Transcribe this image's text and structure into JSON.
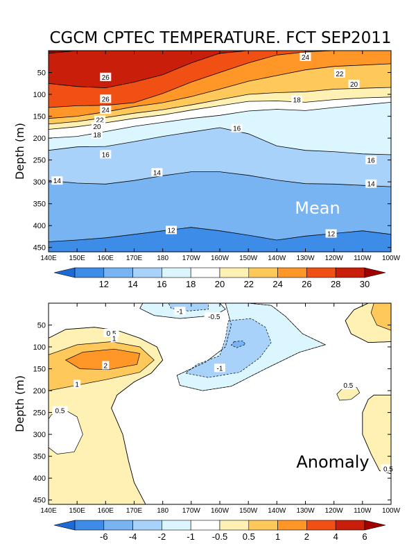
{
  "chart_data": [
    {
      "type": "heatmap",
      "panel": "mean",
      "title": "CGCM CPTEC TEMPERATURE. FCT SEP2011",
      "annotation": "Mean",
      "annotation_color": "#ffffff",
      "ylabel": "Depth (m)",
      "xlabel": "",
      "x_ticks": [
        "140E",
        "150E",
        "160E",
        "170E",
        "180",
        "170W",
        "160W",
        "150W",
        "140W",
        "130W",
        "120W",
        "110W",
        "100W"
      ],
      "y_ticks": [
        50,
        100,
        150,
        200,
        250,
        300,
        350,
        400,
        450
      ],
      "ylim": [
        460,
        0
      ],
      "colorbar": {
        "levels": [
          12,
          14,
          16,
          18,
          20,
          22,
          24,
          26,
          28,
          30
        ],
        "colors": [
          "#1e6ad2",
          "#3c8ce8",
          "#78b4f2",
          "#a8d2fa",
          "#dcf6ff",
          "#ffffff",
          "#fff0b4",
          "#ffc85a",
          "#ff9628",
          "#f05014",
          "#c81e0a",
          "#a00000"
        ]
      },
      "contours": [
        {
          "level": 12,
          "depth": [
            437,
            433,
            428,
            420,
            412,
            404,
            412,
            422,
            433,
            424,
            418,
            412,
            420
          ]
        },
        {
          "level": 14,
          "depth": [
            297,
            303,
            305,
            297,
            286,
            277,
            277,
            285,
            296,
            304,
            305,
            308,
            311
          ]
        },
        {
          "level": 16,
          "depth": [
            228,
            220,
            219,
            208,
            196,
            186,
            176,
            190,
            218,
            228,
            231,
            236,
            238
          ]
        },
        {
          "level": 18,
          "depth": [
            200,
            196,
            185,
            173,
            164,
            155,
            148,
            138,
            134,
            137,
            130,
            124,
            118
          ]
        },
        {
          "level": 20,
          "depth": [
            180,
            174,
            165,
            155,
            147,
            136,
            126,
            116,
            115,
            118,
            112,
            108,
            106
          ]
        },
        {
          "level": 22,
          "depth": [
            168,
            162,
            153,
            143,
            135,
            124,
            112,
            100,
            96,
            94,
            88,
            86,
            84
          ]
        },
        {
          "level": 24,
          "depth": [
            155,
            150,
            140,
            128,
            119,
            105,
            88,
            70,
            57,
            44,
            36,
            33,
            30
          ]
        },
        {
          "level": 26,
          "depth": [
            130,
            126,
            125,
            119,
            98,
            72,
            50,
            28,
            10,
            3,
            0,
            0,
            0
          ]
        },
        {
          "level": 28,
          "depth": [
            75,
            82,
            85,
            72,
            55,
            28,
            6,
            0,
            0,
            0,
            0,
            0,
            0
          ]
        },
        {
          "level": 30,
          "depth": [
            6,
            0,
            0,
            0,
            0,
            0,
            0,
            0,
            0,
            0,
            0,
            0,
            0
          ]
        }
      ],
      "contour_labels": [
        {
          "text": "26",
          "lon": 160,
          "depth": 60
        },
        {
          "text": "26",
          "lon": 160,
          "depth": 110
        },
        {
          "text": "24",
          "lon": 160,
          "depth": 135
        },
        {
          "text": "22",
          "lon": 158,
          "depth": 158
        },
        {
          "text": "20",
          "lon": 157,
          "depth": 173
        },
        {
          "text": "18",
          "lon": 157,
          "depth": 192
        },
        {
          "text": "16",
          "lon": 160,
          "depth": 237
        },
        {
          "text": "14",
          "lon": 143,
          "depth": 297
        },
        {
          "text": "14",
          "lon": 178,
          "depth": 278
        },
        {
          "text": "16",
          "lon": 206,
          "depth": 177
        },
        {
          "text": "18",
          "lon": 227,
          "depth": 112
        },
        {
          "text": "24",
          "lon": 230,
          "depth": 14
        },
        {
          "text": "22",
          "lon": 242,
          "depth": 52
        },
        {
          "text": "20",
          "lon": 247,
          "depth": 76
        },
        {
          "text": "16",
          "lon": 253,
          "depth": 250
        },
        {
          "text": "14",
          "lon": 253,
          "depth": 304
        },
        {
          "text": "12",
          "lon": 183,
          "depth": 410
        },
        {
          "text": "12",
          "lon": 239,
          "depth": 418
        }
      ]
    },
    {
      "type": "heatmap",
      "panel": "anomaly",
      "annotation": "Anomaly",
      "annotation_color": "#000000",
      "ylabel": "Depth (m)",
      "xlabel": "",
      "x_ticks": [
        "140E",
        "150E",
        "160E",
        "170E",
        "180",
        "170W",
        "160W",
        "150W",
        "140W",
        "130W",
        "120W",
        "110W",
        "100W"
      ],
      "y_ticks": [
        50,
        100,
        150,
        200,
        250,
        300,
        350,
        400,
        450
      ],
      "ylim": [
        460,
        0
      ],
      "colorbar": {
        "levels": [
          "-6",
          "-4",
          "-2",
          "-1",
          "-0.5",
          "0.5",
          "1",
          "2",
          "4",
          "6"
        ],
        "colors": [
          "#1e6ad2",
          "#3c8ce8",
          "#78b4f2",
          "#a8d2fa",
          "#dcf6ff",
          "#ffffff",
          "#fff0b4",
          "#ffc85a",
          "#ff9628",
          "#f05014",
          "#c81e0a",
          "#a00000"
        ]
      },
      "regions": [
        {
          "value": 0.5,
          "lonlat": [
            [
              140,
              80
            ],
            [
              146,
              60
            ],
            [
              156,
              55
            ],
            [
              164,
              62
            ],
            [
              172,
              80
            ],
            [
              178,
              100
            ],
            [
              180,
              130
            ],
            [
              176,
              160
            ],
            [
              170,
              180
            ],
            [
              164,
              210
            ],
            [
              162,
              240
            ],
            [
              166,
              300
            ],
            [
              168,
              360
            ],
            [
              170,
              410
            ],
            [
              174,
              460
            ],
            [
              140,
              460
            ]
          ]
        },
        {
          "value": 0,
          "lonlat": [
            [
              141,
              255
            ],
            [
              146,
              245
            ],
            [
              150,
              260
            ],
            [
              152,
              300
            ],
            [
              149,
              340
            ],
            [
              143,
              345
            ],
            [
              140,
              330
            ],
            [
              140,
              265
            ]
          ]
        },
        {
          "value": 1,
          "lonlat": [
            [
              140,
              118
            ],
            [
              150,
              95
            ],
            [
              162,
              88
            ],
            [
              172,
              100
            ],
            [
              177,
              130
            ],
            [
              172,
              158
            ],
            [
              160,
              175
            ],
            [
              148,
              190
            ],
            [
              140,
              200
            ]
          ]
        },
        {
          "value": 2,
          "lonlat": [
            [
              146,
              130
            ],
            [
              152,
              112
            ],
            [
              163,
              105
            ],
            [
              172,
              115
            ],
            [
              171,
              140
            ],
            [
              161,
              152
            ],
            [
              151,
              150
            ]
          ]
        },
        {
          "value": -0.5,
          "lonlat": [
            [
              173,
              0
            ],
            [
              200,
              0
            ],
            [
              202,
              14
            ],
            [
              198,
              28
            ],
            [
              186,
              35
            ],
            [
              177,
              28
            ],
            [
              172,
              12
            ]
          ]
        },
        {
          "value": -1,
          "lonlat": [
            [
              182,
              0
            ],
            [
              196,
              0
            ],
            [
              196,
              14
            ],
            [
              189,
              18
            ],
            [
              183,
              12
            ]
          ]
        },
        {
          "value": -0.5,
          "lonlat": [
            [
              202,
              0
            ],
            [
              210,
              0
            ],
            [
              218,
              5
            ],
            [
              223,
              30
            ],
            [
              229,
              70
            ],
            [
              237,
              95
            ],
            [
              228,
              112
            ],
            [
              216,
              150
            ],
            [
              204,
              190
            ],
            [
              194,
              200
            ],
            [
              186,
              188
            ],
            [
              185,
              165
            ],
            [
              195,
              135
            ],
            [
              202,
              100
            ],
            [
              204,
              50
            ]
          ]
        },
        {
          "value": -1,
          "lonlat": [
            [
              203,
              40
            ],
            [
              211,
              35
            ],
            [
              216,
              55
            ],
            [
              218,
              90
            ],
            [
              214,
              125
            ],
            [
              207,
              158
            ],
            [
              196,
              170
            ],
            [
              188,
              160
            ],
            [
              192,
              140
            ],
            [
              200,
              120
            ],
            [
              202,
              80
            ]
          ]
        },
        {
          "value": -2,
          "lonlat": [
            [
              205,
              88
            ],
            [
              208,
              86
            ],
            [
              209,
              94
            ],
            [
              206,
              102
            ],
            [
              204,
              96
            ]
          ]
        },
        {
          "value": 0.5,
          "lonlat": [
            [
              252,
              0
            ],
            [
              260,
              0
            ],
            [
              260,
              88
            ],
            [
              252,
              90
            ],
            [
              246,
              70
            ],
            [
              244,
              40
            ],
            [
              247,
              15
            ]
          ]
        },
        {
          "value": 1,
          "lonlat": [
            [
              254,
              0
            ],
            [
              260,
              0
            ],
            [
              260,
              62
            ],
            [
              255,
              50
            ],
            [
              253,
              22
            ]
          ]
        },
        {
          "value": 0.5,
          "lonlat": [
            [
              245,
              190
            ],
            [
              248,
              193
            ],
            [
              249,
              205
            ],
            [
              246,
              220
            ],
            [
              242,
              222
            ],
            [
              241,
              208
            ],
            [
              243,
              195
            ]
          ]
        },
        {
          "value": 0.5,
          "lonlat": [
            [
              254,
              210
            ],
            [
              260,
              210
            ],
            [
              260,
              390
            ],
            [
              256,
              383
            ],
            [
              253,
              345
            ],
            [
              250,
              300
            ],
            [
              250,
              250
            ],
            [
              252,
              220
            ]
          ]
        }
      ],
      "contour_lines": [
        {
          "style": "dashed",
          "lonlat": [
            [
              173,
              0
            ],
            [
              172,
              12
            ],
            [
              177,
              28
            ],
            [
              186,
              35
            ],
            [
              198,
              28
            ],
            [
              202,
              14
            ],
            [
              200,
              0
            ]
          ]
        },
        {
          "style": "dashed",
          "lonlat": [
            [
              202,
              0
            ],
            [
              204,
              50
            ],
            [
              202,
              100
            ],
            [
              195,
              135
            ],
            [
              185,
              165
            ],
            [
              186,
              188
            ],
            [
              194,
              200
            ],
            [
              204,
              190
            ],
            [
              216,
              150
            ],
            [
              228,
              112
            ],
            [
              237,
              95
            ],
            [
              229,
              70
            ],
            [
              223,
              30
            ],
            [
              218,
              5
            ],
            [
              210,
              0
            ]
          ]
        },
        {
          "style": "solid",
          "lonlat": [
            [
              140,
              80
            ],
            [
              146,
              60
            ],
            [
              156,
              55
            ],
            [
              164,
              62
            ],
            [
              172,
              80
            ],
            [
              178,
              100
            ],
            [
              180,
              130
            ],
            [
              176,
              160
            ],
            [
              170,
              180
            ],
            [
              164,
              210
            ],
            [
              162,
              240
            ],
            [
              166,
              300
            ],
            [
              168,
              360
            ],
            [
              170,
              410
            ],
            [
              174,
              460
            ]
          ]
        },
        {
          "style": "solid",
          "lonlat": [
            [
              252,
              0
            ],
            [
              247,
              15
            ],
            [
              244,
              40
            ],
            [
              246,
              70
            ],
            [
              252,
              90
            ],
            [
              260,
              88
            ]
          ]
        },
        {
          "style": "solid",
          "lonlat": [
            [
              260,
              210
            ],
            [
              254,
              210
            ],
            [
              252,
              220
            ],
            [
              250,
              250
            ],
            [
              250,
              300
            ],
            [
              253,
              345
            ],
            [
              256,
              383
            ],
            [
              260,
              390
            ]
          ]
        }
      ],
      "contour_labels": [
        {
          "text": "0.5",
          "lon": 162,
          "depth": 68
        },
        {
          "text": "1",
          "lon": 163,
          "depth": 80
        },
        {
          "text": "2",
          "lon": 160,
          "depth": 142
        },
        {
          "text": "1",
          "lon": 150,
          "depth": 185
        },
        {
          "text": "0.5",
          "lon": 144,
          "depth": 245
        },
        {
          "text": "-1",
          "lon": 186,
          "depth": 18
        },
        {
          "text": "-0.5",
          "lon": 198,
          "depth": 30
        },
        {
          "text": "-1",
          "lon": 200,
          "depth": 148
        },
        {
          "text": "0.5",
          "lon": 245,
          "depth": 187
        },
        {
          "text": "0.5",
          "lon": 259,
          "depth": 378
        }
      ]
    }
  ]
}
